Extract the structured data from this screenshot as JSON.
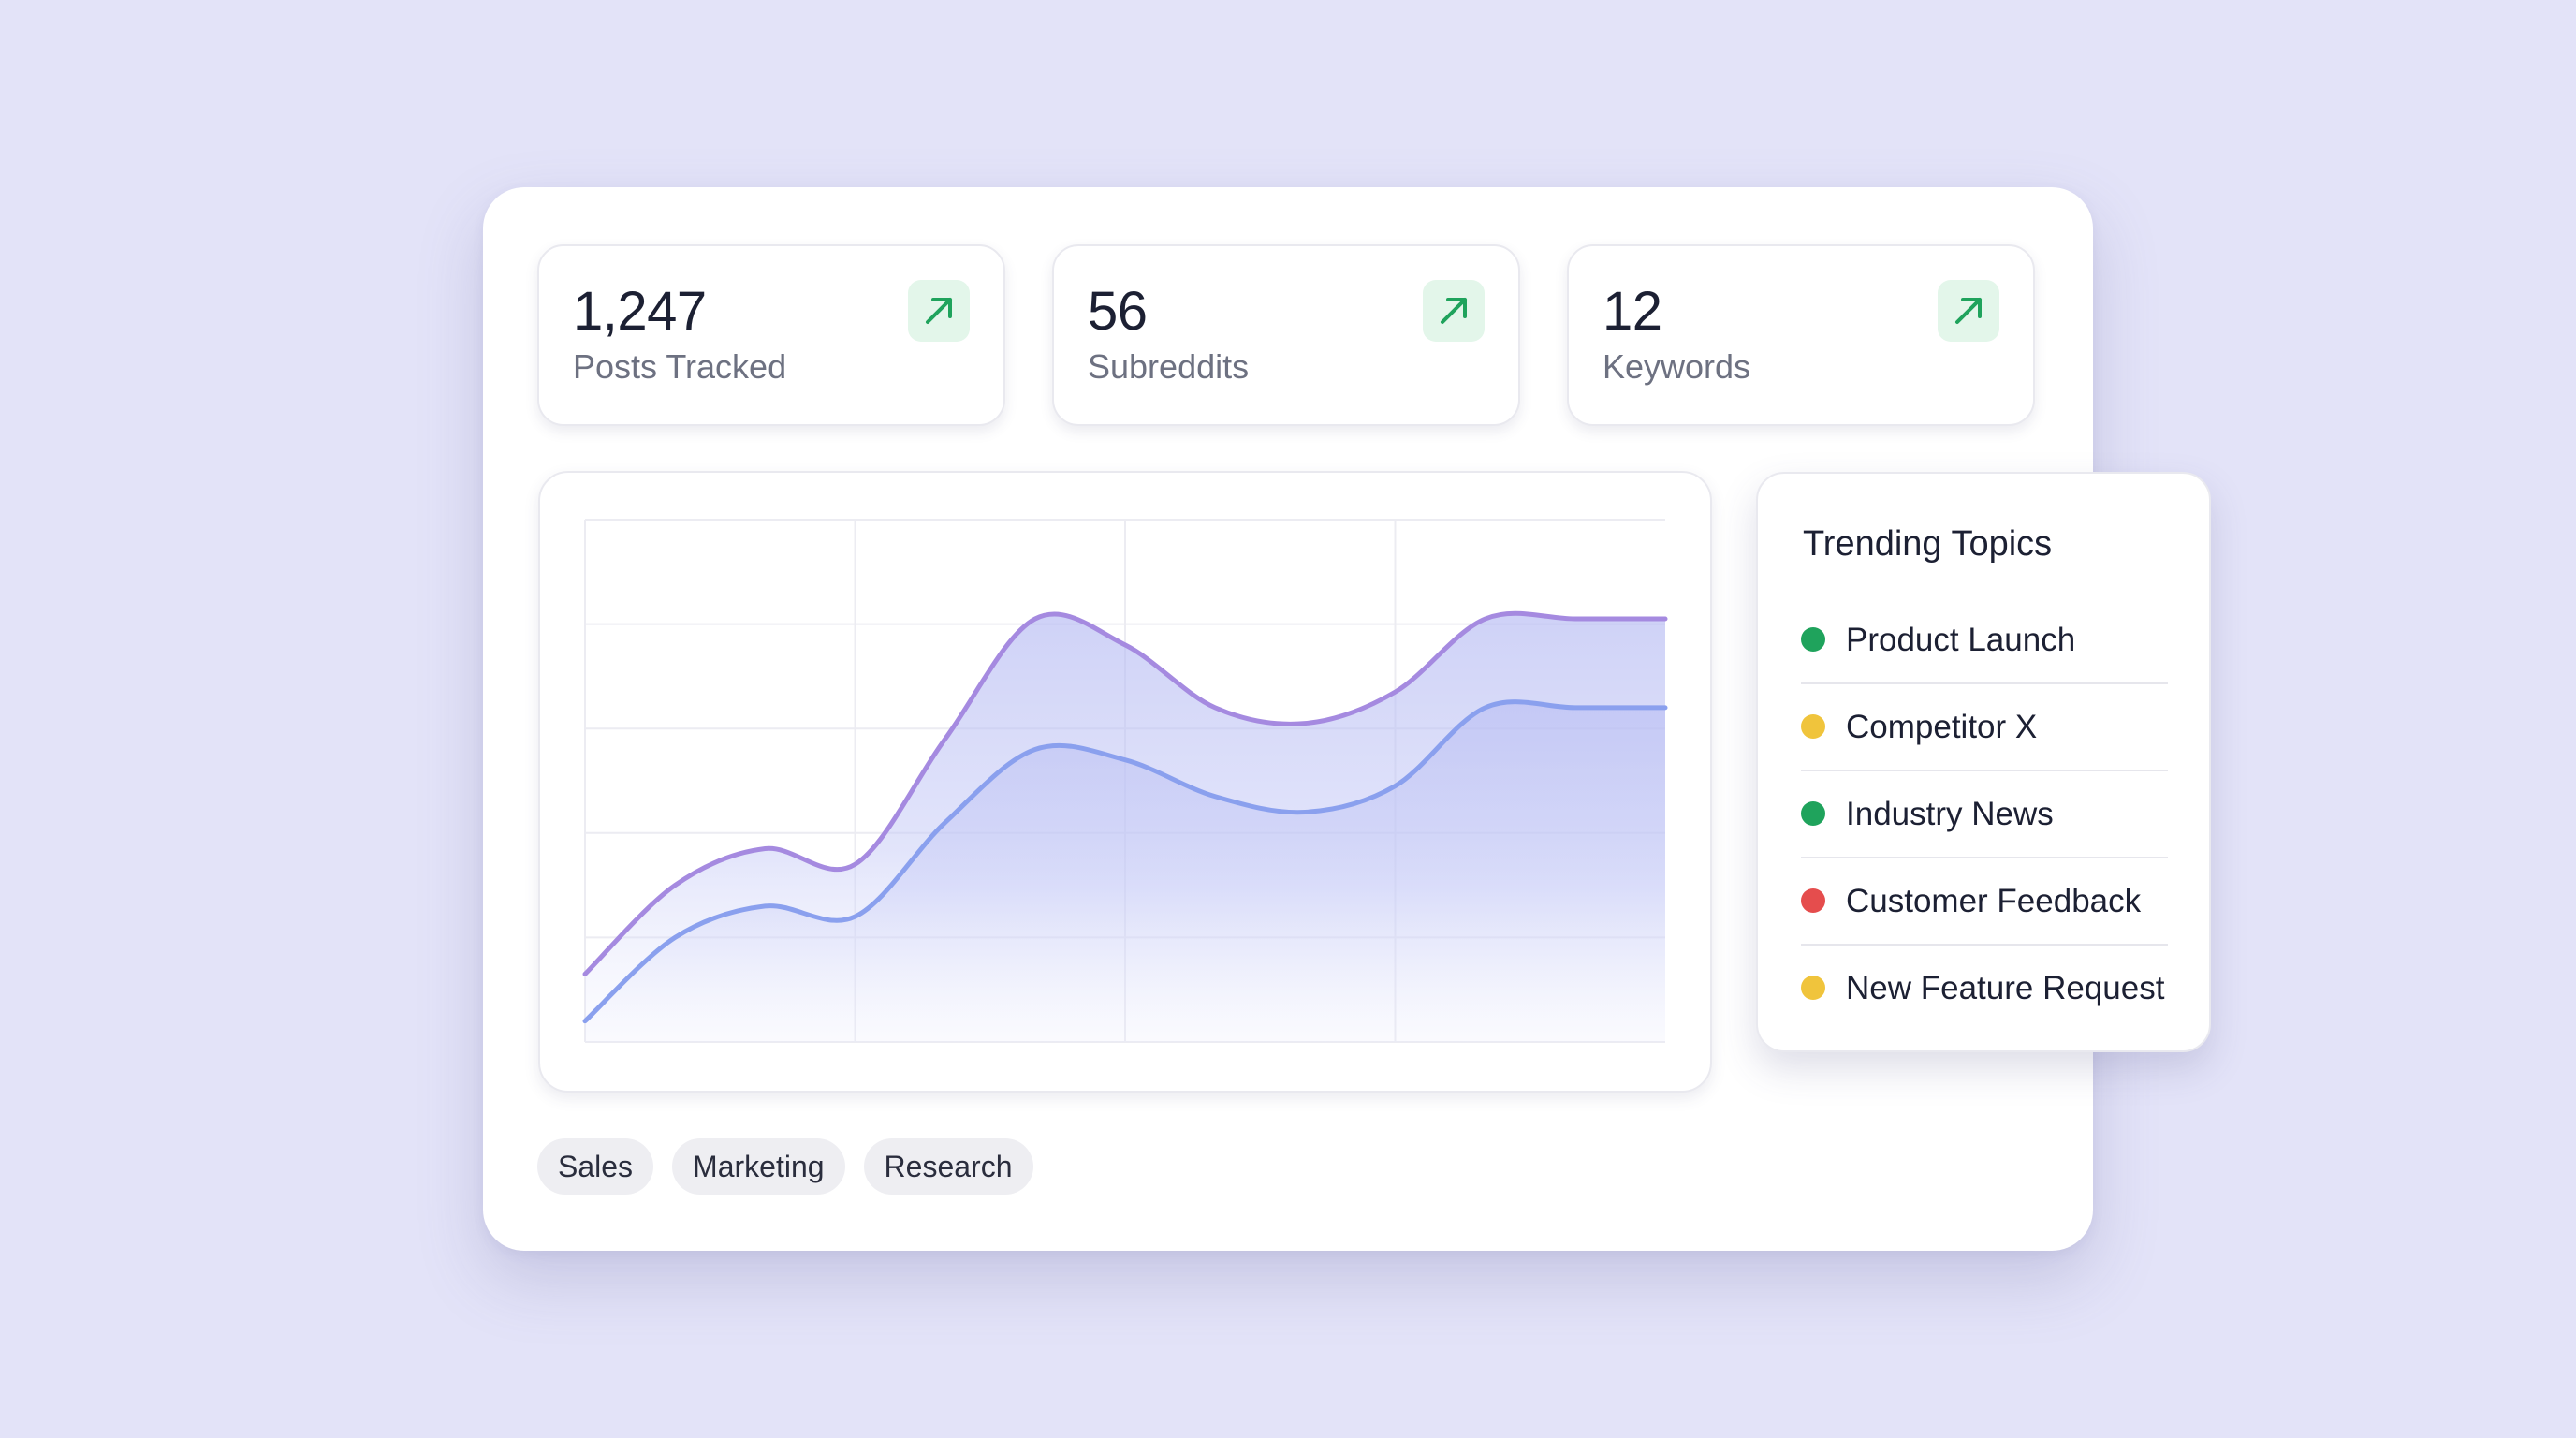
{
  "stats": [
    {
      "value": "1,247",
      "label": "Posts Tracked",
      "trend_icon": "arrow-up-right-icon"
    },
    {
      "value": "56",
      "label": "Subreddits",
      "trend_icon": "arrow-up-right-icon"
    },
    {
      "value": "12",
      "label": "Keywords",
      "trend_icon": "arrow-up-right-icon"
    }
  ],
  "chart_data": {
    "type": "area",
    "x": [
      0,
      1,
      2,
      3,
      4,
      5,
      6,
      7,
      8,
      9,
      10,
      11,
      12
    ],
    "series": [
      {
        "values": [
          13,
          30,
          37,
          34,
          58,
          81,
          76,
          64,
          61,
          67,
          81,
          81,
          81
        ],
        "color": "#a58ae0"
      },
      {
        "values": [
          4,
          20,
          26,
          24,
          42,
          56,
          54,
          47,
          44,
          49,
          64,
          64,
          64
        ],
        "color": "#8aa0ee"
      }
    ],
    "ylim": [
      0,
      100
    ],
    "grid": true,
    "legend": "none",
    "colors": {
      "upper_line": "#a58ae0",
      "lower_line": "#8aa0ee",
      "fill": "#b9bff3",
      "grid": "#ececf2"
    }
  },
  "tags": [
    "Sales",
    "Marketing",
    "Research"
  ],
  "trending": {
    "title": "Trending Topics",
    "topics": [
      {
        "label": "Product Launch",
        "color": "#1fa35c"
      },
      {
        "label": "Competitor X",
        "color": "#f0c43c"
      },
      {
        "label": "Industry News",
        "color": "#1fa35c"
      },
      {
        "label": "Customer Feedback",
        "color": "#e54d4d"
      },
      {
        "label": "New Feature Request",
        "color": "#f0c43c"
      }
    ]
  }
}
